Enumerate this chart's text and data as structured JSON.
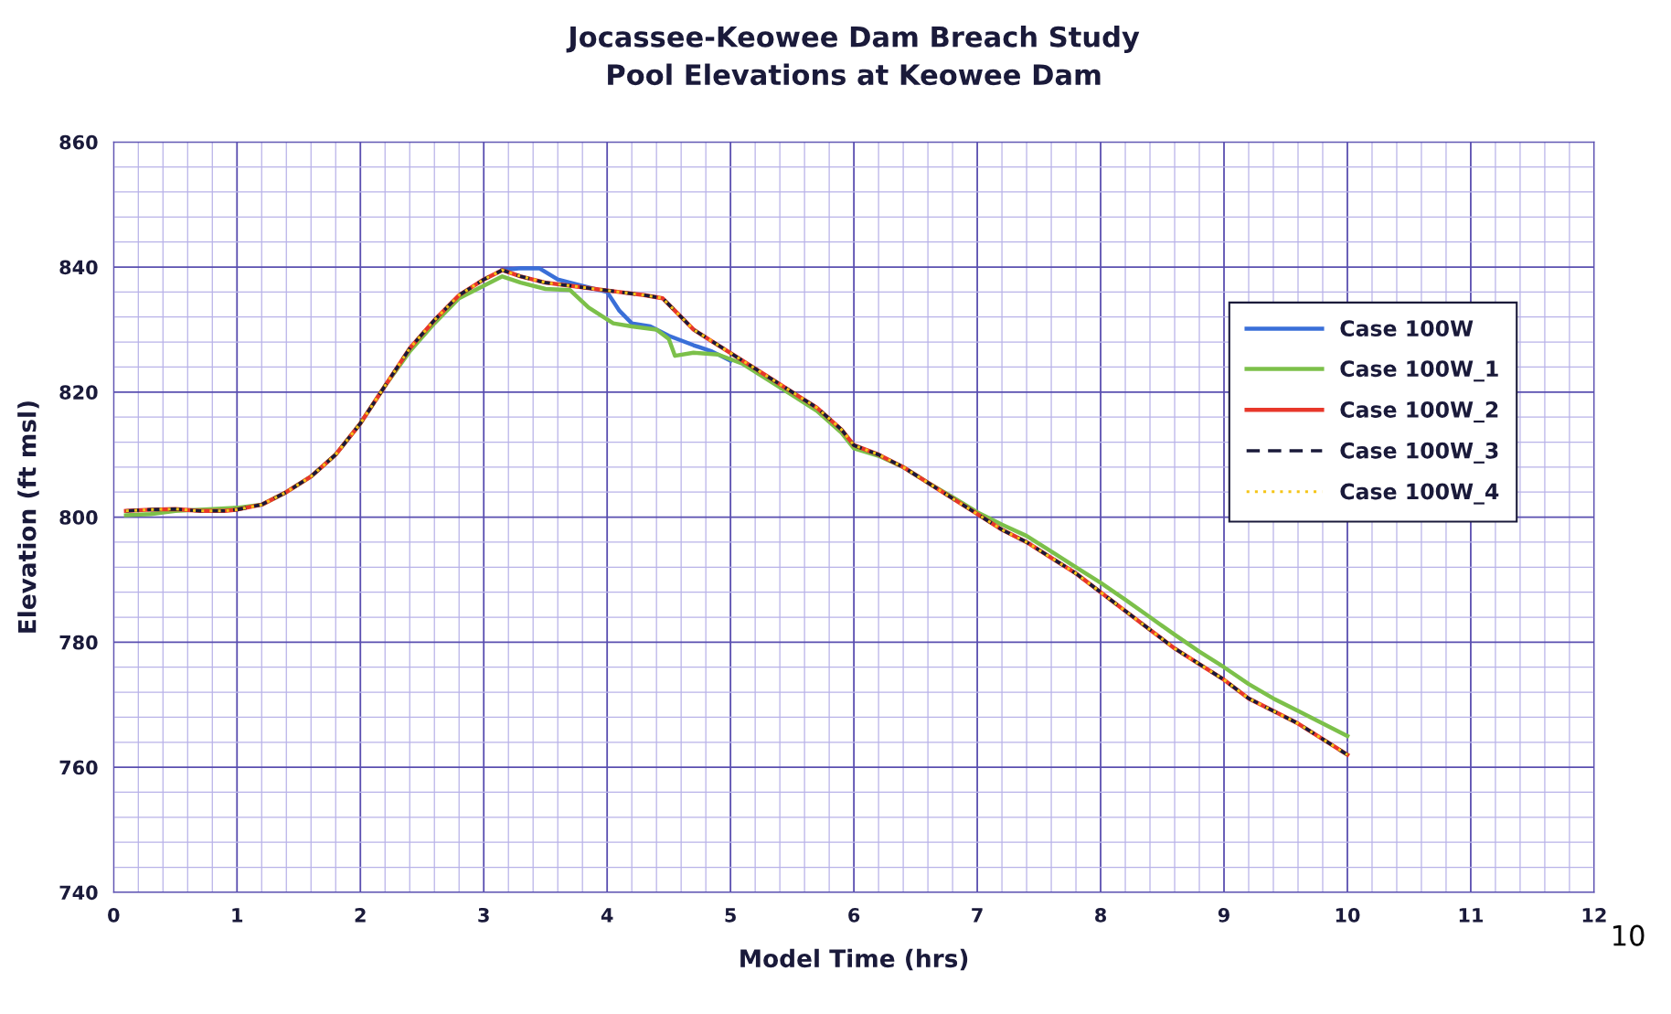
{
  "chart_data": {
    "type": "line",
    "title": "Jocassee-Keowee Dam Breach Study\nPool Elevations at Keowee Dam",
    "xlabel": "Model Time (hrs)",
    "ylabel": "Elevation (ft msl)",
    "xlim": [
      0,
      12
    ],
    "xticks": [
      0,
      {
        "value": 0.2,
        "label": null
      },
      {
        "value": 0.4,
        "label": null
      },
      {
        "value": 0.6,
        "label": null
      },
      {
        "value": 0.8,
        "label": null
      },
      1,
      {
        "value": 1.2,
        "label": null
      },
      {
        "value": 1.4,
        "label": null
      },
      {
        "value": 1.6,
        "label": null
      },
      {
        "value": 1.8,
        "label": null
      },
      2,
      {
        "value": 2.2,
        "label": null
      },
      {
        "value": 2.4,
        "label": null
      },
      {
        "value": 2.6,
        "label": null
      },
      {
        "value": 2.8,
        "label": null
      },
      3,
      {
        "value": 3.2,
        "label": null
      },
      {
        "value": 3.4,
        "label": null
      },
      {
        "value": 3.6,
        "label": null
      },
      {
        "value": 3.8,
        "label": null
      },
      4,
      {
        "value": 4.2,
        "label": null
      },
      {
        "value": 4.4,
        "label": null
      },
      {
        "value": 4.6,
        "label": null
      },
      {
        "value": 4.8,
        "label": null
      },
      5,
      {
        "value": 5.2,
        "label": null
      },
      {
        "value": 5.4,
        "label": null
      },
      {
        "value": 5.6,
        "label": null
      },
      {
        "value": 5.8,
        "label": null
      },
      6,
      {
        "value": 6.2,
        "label": null
      },
      {
        "value": 6.4,
        "label": null
      },
      {
        "value": 6.6,
        "label": null
      },
      {
        "value": 6.8,
        "label": null
      },
      7,
      {
        "value": 7.2,
        "label": null
      },
      {
        "value": 7.4,
        "label": null
      },
      {
        "value": 7.6,
        "label": null
      },
      {
        "value": 7.8,
        "label": null
      },
      8,
      {
        "value": 8.2,
        "label": null
      },
      {
        "value": 8.4,
        "label": null
      },
      {
        "value": 8.6,
        "label": null
      },
      {
        "value": 8.8,
        "label": null
      },
      9,
      {
        "value": 9.2,
        "label": null
      },
      {
        "value": 9.4,
        "label": null
      },
      {
        "value": 9.6,
        "label": null
      },
      {
        "value": 9.8,
        "label": null
      },
      10,
      {
        "value": 10.2,
        "label": null
      },
      {
        "value": 10.4,
        "label": null
      },
      {
        "value": 10.6,
        "label": null
      },
      {
        "value": 10.8,
        "label": null
      },
      11,
      {
        "value": 11.2,
        "label": null
      },
      {
        "value": 11.4,
        "label": null
      },
      {
        "value": 11.6,
        "label": null
      },
      {
        "value": 11.8,
        "label": null
      },
      12
    ],
    "ylim": [
      740,
      860
    ],
    "yticks": [
      740,
      {
        "value": 744,
        "label": null
      },
      {
        "value": 748,
        "label": null
      },
      {
        "value": 752,
        "label": null
      },
      {
        "value": 756,
        "label": null
      },
      760,
      {
        "value": 764,
        "label": null
      },
      {
        "value": 768,
        "label": null
      },
      {
        "value": 772,
        "label": null
      },
      {
        "value": 776,
        "label": null
      },
      780,
      {
        "value": 784,
        "label": null
      },
      {
        "value": 788,
        "label": null
      },
      {
        "value": 792,
        "label": null
      },
      {
        "value": 796,
        "label": null
      },
      800,
      {
        "value": 804,
        "label": null
      },
      {
        "value": 808,
        "label": null
      },
      {
        "value": 812,
        "label": null
      },
      {
        "value": 816,
        "label": null
      },
      820,
      {
        "value": 824,
        "label": null
      },
      {
        "value": 828,
        "label": null
      },
      {
        "value": 832,
        "label": null
      },
      {
        "value": 836,
        "label": null
      },
      840,
      {
        "value": 844,
        "label": null
      },
      {
        "value": 848,
        "label": null
      },
      {
        "value": 852,
        "label": null
      },
      {
        "value": 856,
        "label": null
      },
      860
    ],
    "grid": true,
    "legend": "right",
    "marker": "none",
    "annotations": [
      "10"
    ],
    "series": [
      {
        "name": "Case 100W",
        "color": "#3a6fd8",
        "line_style": "solid",
        "x": [
          3.15,
          3.3,
          3.45,
          3.6,
          3.8,
          4.0,
          4.1,
          4.2,
          4.35,
          4.5,
          4.7,
          4.85,
          5.0
        ],
        "values": [
          839.5,
          839.8,
          839.8,
          838,
          837,
          836,
          833,
          831,
          830.5,
          829,
          827.5,
          826.5,
          825
        ]
      },
      {
        "name": "Case 100W_1",
        "color": "#7cc04a",
        "line_style": "solid",
        "x": [
          0.1,
          0.3,
          0.5,
          0.7,
          1.0,
          1.2,
          1.4,
          1.6,
          1.8,
          2.0,
          2.2,
          2.4,
          2.6,
          2.8,
          3.0,
          3.15,
          3.3,
          3.5,
          3.7,
          3.85,
          4.05,
          4.2,
          4.4,
          4.5,
          4.55,
          4.7,
          4.9,
          5.1,
          5.3,
          5.5,
          5.7,
          5.9,
          6.0,
          6.2,
          6.4,
          6.6,
          6.8,
          7.0,
          7.2,
          7.4,
          7.6,
          7.8,
          8.0,
          8.2,
          8.4,
          8.6,
          8.8,
          9.0,
          9.2,
          9.4,
          9.6,
          9.8,
          10.0
        ],
        "values": [
          800.3,
          800.5,
          801,
          801.2,
          801.5,
          802,
          804,
          806.5,
          810,
          815,
          821,
          826.5,
          831,
          835,
          837,
          838.5,
          837.5,
          836.5,
          836.3,
          833.5,
          831,
          830.5,
          830,
          828.5,
          825.8,
          826.3,
          826,
          824.5,
          822,
          819.5,
          817,
          813.5,
          811,
          809.8,
          808,
          805.5,
          803.2,
          800.8,
          798.8,
          797,
          794.5,
          792,
          789.5,
          786.8,
          784,
          781.2,
          778.5,
          776,
          773.3,
          771,
          769,
          767,
          765
        ]
      },
      {
        "name": "Case 100W_2",
        "color": "#e8372a",
        "line_style": "solid",
        "x": [
          0.1,
          0.3,
          0.5,
          0.7,
          0.9,
          1.0,
          1.2,
          1.4,
          1.6,
          1.8,
          2.0,
          2.2,
          2.4,
          2.6,
          2.8,
          3.0,
          3.15,
          3.3,
          3.5,
          3.7,
          3.9,
          4.1,
          4.3,
          4.45,
          4.55,
          4.7,
          4.9,
          5.1,
          5.3,
          5.5,
          5.7,
          5.9,
          6.0,
          6.2,
          6.4,
          6.6,
          6.8,
          7.0,
          7.2,
          7.4,
          7.6,
          7.8,
          8.0,
          8.2,
          8.4,
          8.6,
          8.8,
          9.0,
          9.2,
          9.4,
          9.6,
          9.8,
          10.0
        ],
        "values": [
          801,
          801.2,
          801.3,
          801,
          801,
          801.2,
          802,
          804,
          806.5,
          810,
          815,
          821,
          827,
          831.5,
          835.5,
          838,
          839.5,
          838.5,
          837.5,
          837,
          836.5,
          836,
          835.5,
          835,
          833,
          830,
          827.5,
          825,
          822.5,
          820,
          817.5,
          814,
          811.5,
          810,
          808,
          805.5,
          803,
          800.5,
          798,
          796,
          793.5,
          791,
          788,
          785,
          782,
          779,
          776.5,
          774,
          771,
          769,
          767,
          764.5,
          762
        ]
      },
      {
        "name": "Case 100W_3",
        "color": "#1a1a3a",
        "line_style": "dashed",
        "x": [
          0.1,
          0.3,
          0.5,
          0.7,
          0.9,
          1.0,
          1.2,
          1.4,
          1.6,
          1.8,
          2.0,
          2.2,
          2.4,
          2.6,
          2.8,
          3.0,
          3.15,
          3.3,
          3.5,
          3.7,
          3.9,
          4.1,
          4.3,
          4.45,
          4.55,
          4.7,
          4.9,
          5.1,
          5.3,
          5.5,
          5.7,
          5.9,
          6.0,
          6.2,
          6.4,
          6.6,
          6.8,
          7.0,
          7.2,
          7.4,
          7.6,
          7.8,
          8.0,
          8.2,
          8.4,
          8.6,
          8.8,
          9.0,
          9.2,
          9.4,
          9.6,
          9.8,
          10.0
        ],
        "values": [
          801,
          801.2,
          801.3,
          801,
          801,
          801.2,
          802,
          804,
          806.5,
          810,
          815,
          821,
          827,
          831.5,
          835.5,
          838,
          839.5,
          838.5,
          837.5,
          837,
          836.5,
          836,
          835.5,
          835,
          833,
          830,
          827.5,
          825,
          822.5,
          820,
          817.5,
          814,
          811.5,
          810,
          808,
          805.5,
          803,
          800.5,
          798,
          796,
          793.5,
          791,
          788,
          785,
          782,
          779,
          776.5,
          774,
          771,
          769,
          767,
          764.5,
          762
        ]
      },
      {
        "name": "Case 100W_4",
        "color": "#f5c518",
        "line_style": "dotted",
        "x": [
          0.1,
          0.3,
          0.5,
          0.7,
          0.9,
          1.0,
          1.2,
          1.4,
          1.6,
          1.8,
          2.0,
          2.2,
          2.4,
          2.6,
          2.8,
          3.0,
          3.15,
          3.3,
          3.5,
          3.7,
          3.9,
          4.1,
          4.3,
          4.45,
          4.55,
          4.7,
          4.9,
          5.1,
          5.3,
          5.5,
          5.7,
          5.9,
          6.0,
          6.2,
          6.4,
          6.6,
          6.8,
          7.0,
          7.2,
          7.4,
          7.6,
          7.8,
          8.0,
          8.2,
          8.4,
          8.6,
          8.8,
          9.0,
          9.2,
          9.4,
          9.6,
          9.8,
          10.0
        ],
        "values": [
          801,
          801.2,
          801.3,
          801,
          801,
          801.2,
          802,
          804,
          806.5,
          810,
          815,
          821,
          827,
          831.5,
          835.5,
          838,
          839.5,
          838.5,
          837.5,
          837,
          836.5,
          836,
          835.5,
          835,
          833,
          830,
          827.5,
          825,
          822.5,
          820,
          817.5,
          814,
          811.5,
          810,
          808,
          805.5,
          803,
          800.5,
          798,
          796,
          793.5,
          791,
          788,
          785,
          782,
          779,
          776.5,
          774,
          771,
          769,
          767,
          764.5,
          762
        ]
      }
    ]
  }
}
